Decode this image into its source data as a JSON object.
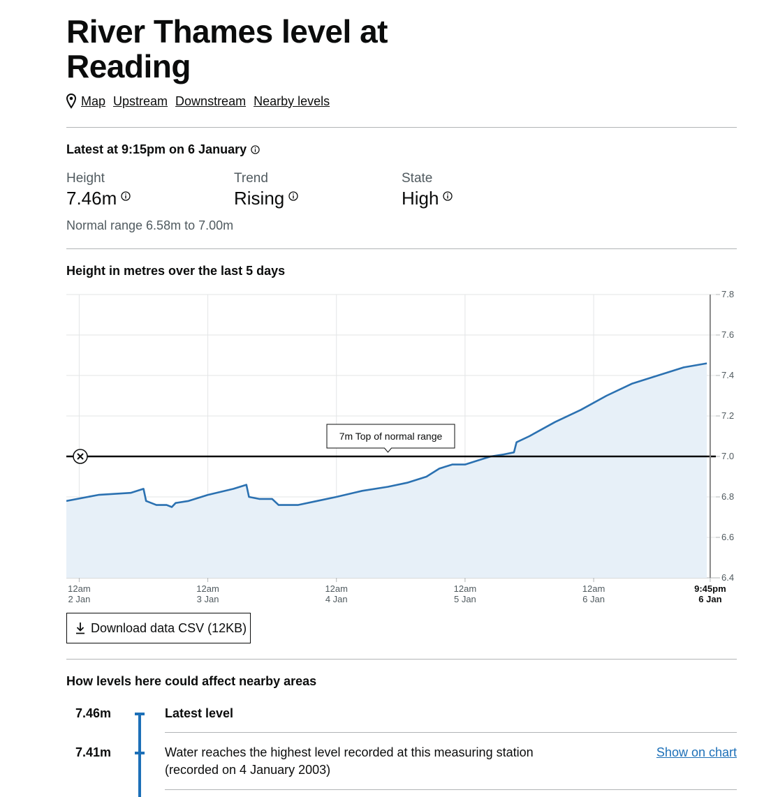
{
  "page": {
    "title": "River Thames level at Reading",
    "nav": [
      "Map",
      "Upstream",
      "Downstream",
      "Nearby levels"
    ]
  },
  "latest": {
    "heading": "Latest at 9:15pm on 6 January",
    "height_label": "Height",
    "height_value": "7.46m",
    "trend_label": "Trend",
    "trend_value": "Rising",
    "state_label": "State",
    "state_value": "High",
    "normal_range": "Normal range 6.58m to 7.00m"
  },
  "chart_section": {
    "title": "Height in metres over the last 5 days",
    "download_label": "Download data CSV (12KB)"
  },
  "chart_data": {
    "type": "area",
    "title": "Height in metres over the last 5 days",
    "ylim": [
      6.4,
      7.8
    ],
    "yticks": [
      "7.8",
      "7.6",
      "7.4",
      "7.2",
      "7.0",
      "6.8",
      "6.6",
      "6.4"
    ],
    "xlim_days": [
      -0.1,
      4.95
    ],
    "xticks": [
      {
        "day": 0,
        "line1": "12am",
        "line2": "2 Jan",
        "bold": false
      },
      {
        "day": 1,
        "line1": "12am",
        "line2": "3 Jan",
        "bold": false
      },
      {
        "day": 2,
        "line1": "12am",
        "line2": "4 Jan",
        "bold": false
      },
      {
        "day": 3,
        "line1": "12am",
        "line2": "5 Jan",
        "bold": false
      },
      {
        "day": 4,
        "line1": "12am",
        "line2": "6 Jan",
        "bold": false
      },
      {
        "day": 4.906,
        "line1": "9:45pm",
        "line2": "6 Jan",
        "bold": true
      }
    ],
    "threshold": {
      "value": 7.0,
      "label": "7m Top of normal range"
    },
    "now_day": 4.906,
    "series": [
      {
        "points": [
          [
            -0.1,
            6.78
          ],
          [
            0.15,
            6.81
          ],
          [
            0.4,
            6.82
          ],
          [
            0.5,
            6.84
          ],
          [
            0.52,
            6.78
          ],
          [
            0.6,
            6.76
          ],
          [
            0.68,
            6.76
          ],
          [
            0.72,
            6.75
          ],
          [
            0.75,
            6.77
          ],
          [
            0.85,
            6.78
          ],
          [
            1.0,
            6.81
          ],
          [
            1.2,
            6.84
          ],
          [
            1.3,
            6.86
          ],
          [
            1.32,
            6.8
          ],
          [
            1.4,
            6.79
          ],
          [
            1.5,
            6.79
          ],
          [
            1.55,
            6.76
          ],
          [
            1.7,
            6.76
          ],
          [
            1.85,
            6.78
          ],
          [
            2.0,
            6.8
          ],
          [
            2.2,
            6.83
          ],
          [
            2.4,
            6.85
          ],
          [
            2.55,
            6.87
          ],
          [
            2.7,
            6.9
          ],
          [
            2.8,
            6.94
          ],
          [
            2.9,
            6.96
          ],
          [
            3.0,
            6.96
          ],
          [
            3.1,
            6.98
          ],
          [
            3.2,
            7.0
          ],
          [
            3.3,
            7.01
          ],
          [
            3.38,
            7.02
          ],
          [
            3.4,
            7.07
          ],
          [
            3.5,
            7.1
          ],
          [
            3.7,
            7.17
          ],
          [
            3.9,
            7.23
          ],
          [
            4.1,
            7.3
          ],
          [
            4.3,
            7.36
          ],
          [
            4.5,
            7.4
          ],
          [
            4.7,
            7.44
          ],
          [
            4.88,
            7.46
          ]
        ]
      }
    ]
  },
  "affect_section": {
    "title": "How levels here could affect nearby areas",
    "items": [
      {
        "value": "7.46m",
        "text": "Latest level"
      },
      {
        "value": "7.41m",
        "text": "Water reaches the highest level recorded at this measuring station (recorded on 4 January 2003)",
        "link": "Show on chart"
      }
    ]
  }
}
